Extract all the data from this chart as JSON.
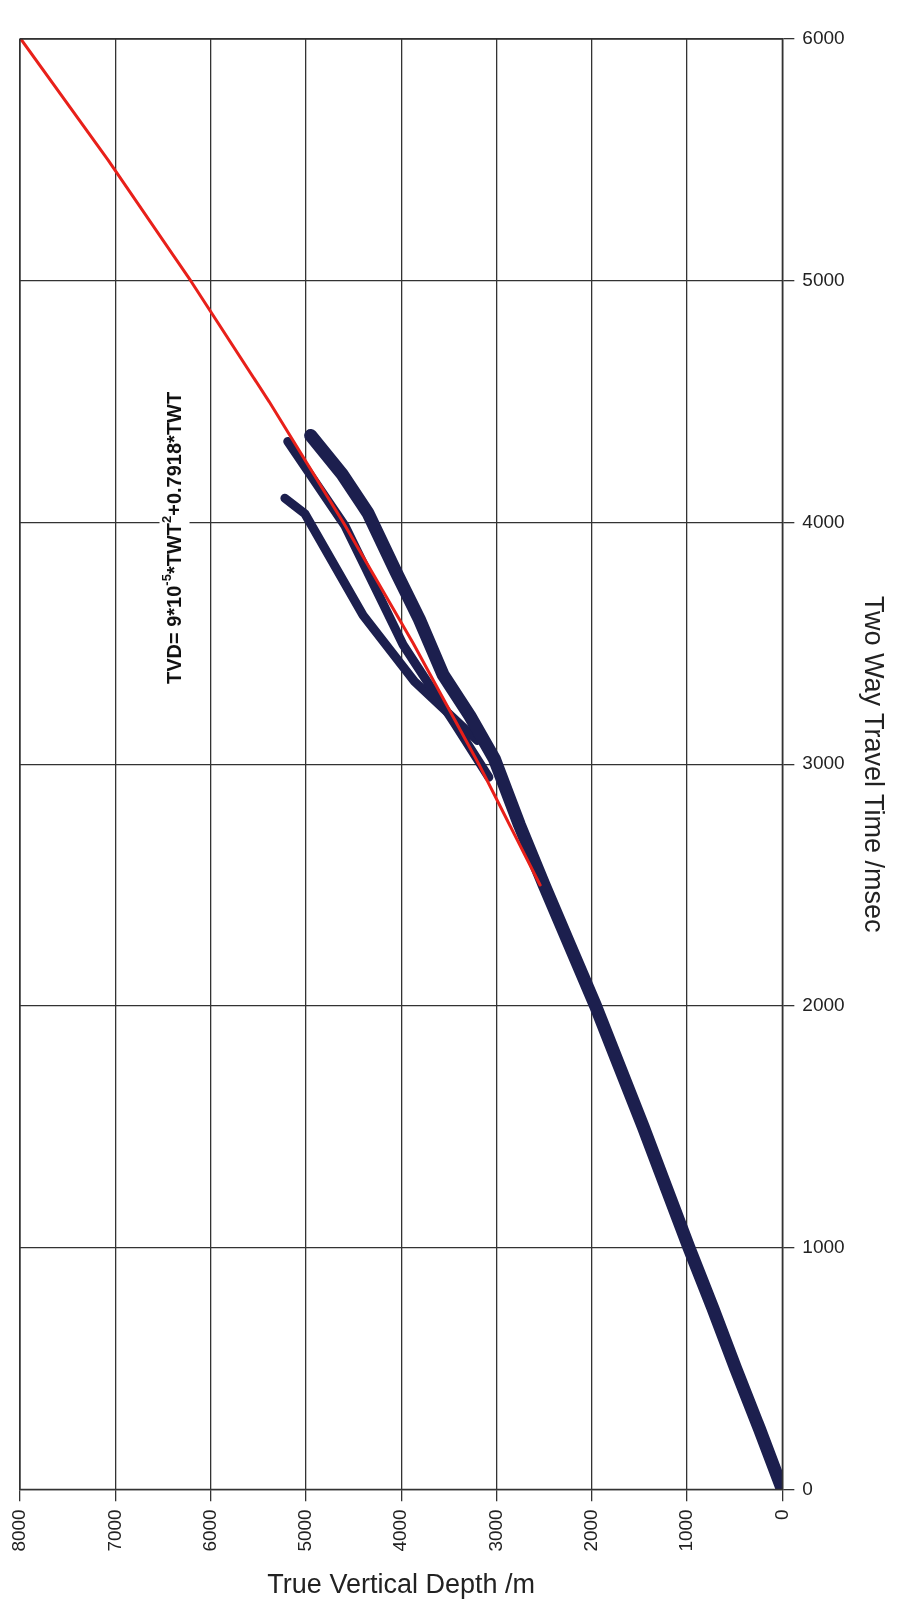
{
  "chart_data": {
    "type": "line",
    "xlabel": "True Vertical Depth /m",
    "ylabel": "Two Way Travel Time /msec",
    "xlim": [
      8000,
      0
    ],
    "ylim": [
      0,
      6000
    ],
    "xticks": [
      8000,
      7000,
      6000,
      5000,
      4000,
      3000,
      2000,
      1000,
      0
    ],
    "yticks": [
      0,
      1000,
      2000,
      3000,
      4000,
      5000,
      6000
    ],
    "grid": true,
    "legend": false,
    "annotations": [
      "TVD= 9*10$^{-5}$*TWT$^{2}$+0.7918*TWT"
    ],
    "series": [
      {
        "color": "#1c1f4e",
        "x": [
          0,
          240,
          490,
          730,
          980,
          1220,
          1460,
          1710,
          1960,
          2230,
          2500,
          2760,
          3020,
          3280,
          3560,
          3810,
          4060,
          4350,
          4620,
          4950
        ],
        "values": [
          0,
          250,
          500,
          750,
          1000,
          1250,
          1500,
          1750,
          2000,
          2250,
          2500,
          2750,
          3020,
          3200,
          3370,
          3600,
          3800,
          4040,
          4200,
          4360
        ]
      },
      {
        "color": "#1c1f4e",
        "x": [
          3080,
          3440,
          3980,
          4590,
          5190
        ],
        "values": [
          2946,
          3169,
          3494,
          3986,
          4335
        ]
      },
      {
        "color": "#1c1f4e",
        "x": [
          3200,
          3860,
          4400,
          5010,
          5220
        ],
        "values": [
          3098,
          3342,
          3616,
          4036,
          4100
        ]
      },
      {
        "color": "#e8201a",
        "x": [
          2542,
          3185,
          3874,
          4607,
          5386,
          6209,
          7077,
          7991
        ],
        "values": [
          2500,
          3000,
          3500,
          4000,
          4500,
          5000,
          5500,
          6000
        ]
      }
    ]
  }
}
